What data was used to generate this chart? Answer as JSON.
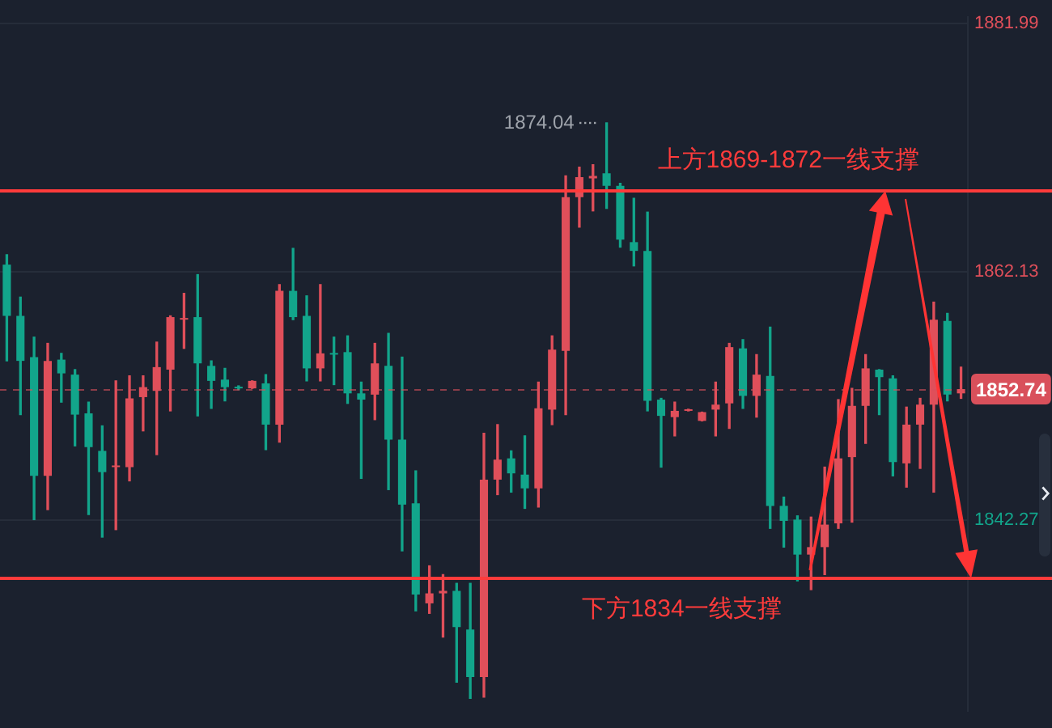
{
  "chart_data": {
    "type": "candlestick",
    "categories": [
      null,
      null,
      null,
      null,
      null,
      null,
      null,
      null,
      null,
      null,
      null,
      null,
      null,
      null,
      null,
      null,
      null,
      null,
      null,
      null,
      null,
      null,
      null,
      null,
      null,
      null,
      null,
      null,
      null,
      null,
      null,
      null,
      null,
      null,
      null,
      null,
      null,
      null,
      null,
      null,
      null,
      null,
      null,
      null,
      null,
      null,
      null,
      null,
      null,
      null,
      null,
      null,
      null,
      null,
      null,
      null,
      null,
      null,
      null,
      null,
      null,
      null,
      null,
      null,
      null,
      null,
      null,
      null,
      null,
      null,
      null
    ],
    "ohlc": [
      [
        1862.7,
        1863.5,
        1855.0,
        1858.6
      ],
      [
        1858.6,
        1860.1,
        1850.7,
        1855.0
      ],
      [
        1855.3,
        1856.9,
        1842.3,
        1845.8
      ],
      [
        1845.8,
        1856.4,
        1843.1,
        1855.0
      ],
      [
        1855.1,
        1855.6,
        1851.7,
        1854.0
      ],
      [
        1853.9,
        1854.3,
        1848.2,
        1850.7
      ],
      [
        1850.8,
        1851.7,
        1842.7,
        1848.1
      ],
      [
        1847.8,
        1849.8,
        1840.9,
        1846.1
      ],
      [
        1846.5,
        1853.4,
        1841.5,
        1846.6
      ],
      [
        1846.5,
        1853.8,
        1845.4,
        1852.0
      ],
      [
        1852.1,
        1853.8,
        1849.4,
        1852.9
      ],
      [
        1852.6,
        1856.5,
        1847.5,
        1854.5
      ],
      [
        1854.3,
        1858.6,
        1851.0,
        1858.5
      ],
      [
        1858.3,
        1860.4,
        1856.0,
        1858.4
      ],
      [
        1858.5,
        1861.9,
        1850.6,
        1854.8
      ],
      [
        1854.6,
        1855.0,
        1851.2,
        1853.4
      ],
      [
        1853.5,
        1854.4,
        1851.8,
        1852.9
      ],
      [
        1852.9,
        1853.0,
        1852.7,
        1852.8
      ],
      [
        1852.8,
        1853.4,
        1852.8,
        1853.4
      ],
      [
        1853.2,
        1853.9,
        1847.9,
        1849.9
      ],
      [
        1849.9,
        1861.1,
        1848.5,
        1860.6
      ],
      [
        1860.6,
        1864.0,
        1858.3,
        1858.5
      ],
      [
        1858.6,
        1860.2,
        1853.4,
        1854.4
      ],
      [
        1854.4,
        1861.1,
        1853.4,
        1855.6
      ],
      [
        1855.6,
        1856.9,
        1853.1,
        1855.5
      ],
      [
        1855.7,
        1857.0,
        1851.6,
        1852.4
      ],
      [
        1852.4,
        1853.3,
        1845.6,
        1851.9
      ],
      [
        1852.3,
        1856.4,
        1850.3,
        1854.8
      ],
      [
        1854.6,
        1857.2,
        1844.7,
        1848.7
      ],
      [
        1848.7,
        1855.3,
        1839.8,
        1843.5
      ],
      [
        1843.6,
        1846.2,
        1835.0,
        1836.3
      ],
      [
        1835.6,
        1838.6,
        1834.8,
        1836.4
      ],
      [
        1836.4,
        1837.9,
        1832.9,
        1836.6
      ],
      [
        1836.6,
        1837.2,
        1829.3,
        1833.7
      ],
      [
        1833.5,
        1837.2,
        1828.0,
        1829.7
      ],
      [
        1829.7,
        1849.2,
        1828.1,
        1845.5
      ],
      [
        1845.5,
        1849.9,
        1844.3,
        1847.1
      ],
      [
        1847.2,
        1847.8,
        1844.5,
        1846.0
      ],
      [
        1845.9,
        1849.0,
        1843.2,
        1844.8
      ],
      [
        1844.8,
        1853.3,
        1843.3,
        1851.2
      ],
      [
        1851.1,
        1857.0,
        1849.9,
        1855.9
      ],
      [
        1855.8,
        1869.8,
        1850.7,
        1868.1
      ],
      [
        1868.1,
        1870.5,
        1865.7,
        1869.7
      ],
      [
        1869.6,
        1870.7,
        1867.0,
        1869.8
      ],
      [
        1870.0,
        1874.04,
        1867.2,
        1869.0
      ],
      [
        1869.0,
        1869.2,
        1864.1,
        1864.7
      ],
      [
        1864.5,
        1868.0,
        1862.6,
        1863.8
      ],
      [
        1863.8,
        1866.9,
        1851.0,
        1851.8
      ],
      [
        1851.9,
        1852.0,
        1846.5,
        1850.6
      ],
      [
        1850.5,
        1851.7,
        1849.0,
        1851.0
      ],
      [
        1851.0,
        1851.1,
        1851.0,
        1851.1
      ],
      [
        1850.2,
        1850.9,
        1850.2,
        1850.9
      ],
      [
        1851.1,
        1853.3,
        1849.0,
        1851.5
      ],
      [
        1851.6,
        1856.4,
        1849.6,
        1856.1
      ],
      [
        1856.0,
        1856.7,
        1851.2,
        1852.2
      ],
      [
        1852.2,
        1855.5,
        1850.5,
        1853.9
      ],
      [
        1853.8,
        1857.7,
        1841.6,
        1843.4
      ],
      [
        1843.4,
        1844.1,
        1840.1,
        1842.2
      ],
      [
        1842.3,
        1842.6,
        1837.4,
        1839.5
      ],
      [
        1839.5,
        1842.5,
        1836.7,
        1840.1
      ],
      [
        1840.1,
        1846.5,
        1837.9,
        1841.9
      ],
      [
        1842.0,
        1851.9,
        1841.6,
        1847.2
      ],
      [
        1847.3,
        1852.8,
        1842.1,
        1851.4
      ],
      [
        1851.4,
        1855.5,
        1848.4,
        1854.4
      ],
      [
        1854.3,
        1854.3,
        1850.7,
        1853.7
      ],
      [
        1853.6,
        1853.8,
        1845.8,
        1846.9
      ],
      [
        1846.8,
        1851.3,
        1844.9,
        1849.9
      ],
      [
        1849.9,
        1852.0,
        1846.4,
        1851.5
      ],
      [
        1851.5,
        1859.7,
        1844.5,
        1858.3
      ],
      [
        1858.2,
        1858.8,
        1851.8,
        1852.3
      ],
      [
        1852.4,
        1854.5,
        1852.0,
        1852.74
      ]
    ],
    "colors": [
      "#12a58b",
      "#12a58b",
      "#12a58b",
      "#e04f5a",
      "#12a58b",
      "#12a58b",
      "#12a58b",
      "#12a58b",
      "#e04f5a",
      "#e04f5a",
      "#e04f5a",
      "#e04f5a",
      "#e04f5a",
      "#e04f5a",
      "#12a58b",
      "#12a58b",
      "#12a58b",
      "#12a58b",
      "#e04f5a",
      "#12a58b",
      "#e04f5a",
      "#12a58b",
      "#12a58b",
      "#e04f5a",
      "#12a58b",
      "#12a58b",
      "#12a58b",
      "#e04f5a",
      "#12a58b",
      "#12a58b",
      "#12a58b",
      "#e04f5a",
      "#e04f5a",
      "#12a58b",
      "#12a58b",
      "#e04f5a",
      "#e04f5a",
      "#12a58b",
      "#12a58b",
      "#e04f5a",
      "#e04f5a",
      "#e04f5a",
      "#e04f5a",
      "#e04f5a",
      "#12a58b",
      "#12a58b",
      "#12a58b",
      "#12a58b",
      "#12a58b",
      "#e04f5a",
      "#e04f5a",
      "#e04f5a",
      "#e04f5a",
      "#e04f5a",
      "#12a58b",
      "#e04f5a",
      "#12a58b",
      "#12a58b",
      "#12a58b",
      "#e04f5a",
      "#e04f5a",
      "#e04f5a",
      "#e04f5a",
      "#e04f5a",
      "#12a58b",
      "#12a58b",
      "#e04f5a",
      "#e04f5a",
      "#e04f5a",
      "#12a58b",
      "#e04f5a"
    ],
    "ylim": [
      1827.0,
      1882.5
    ],
    "yticks": [
      1842.27,
      1862.13,
      1881.99
    ],
    "grid": "y",
    "tick_labels": "y",
    "ref_lines": [
      {
        "axis": "y",
        "value": 1868.6,
        "label": "上方1869-1872一线支撑",
        "color": "#ff3b3b"
      },
      {
        "axis": "y",
        "value": 1837.6,
        "label": "下方1834一线支撑",
        "color": "#ff3b3b"
      },
      {
        "axis": "y",
        "value": 1852.74,
        "label": "1852.74",
        "color": "#d9505b",
        "line_style": "dashed"
      }
    ],
    "annotations": [
      "1874.04"
    ]
  }
}
